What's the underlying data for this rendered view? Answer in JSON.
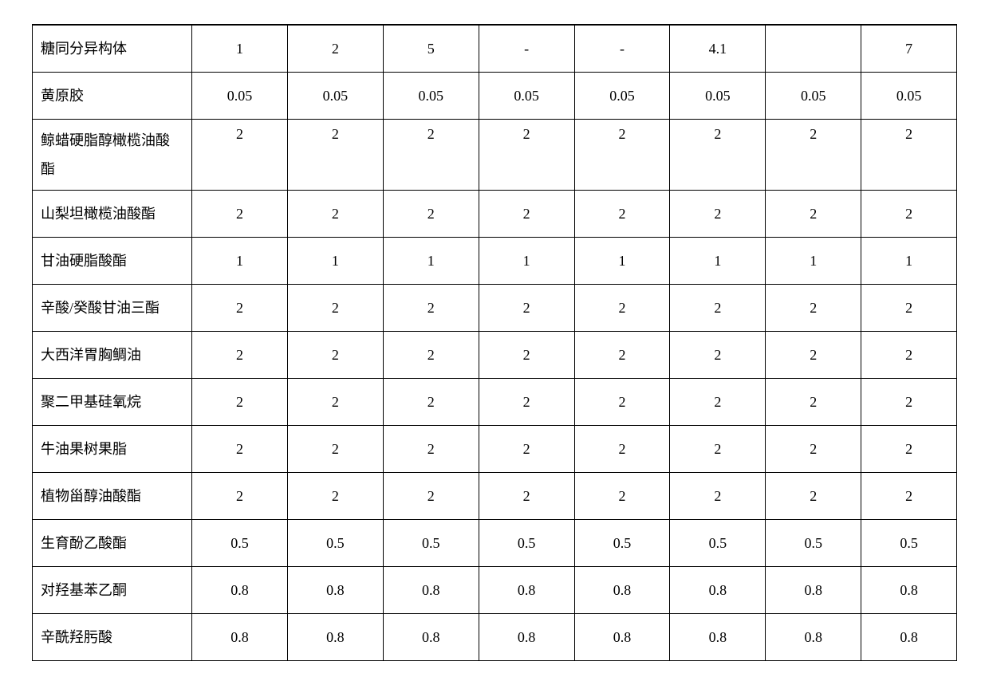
{
  "col_widths": {
    "label": "200px"
  },
  "rows": [
    {
      "label": "糖同分异构体",
      "cells": [
        "1",
        "2",
        "5",
        "-",
        "-",
        "4.1",
        "",
        "7"
      ],
      "twoLine": false
    },
    {
      "label": "黄原胶",
      "cells": [
        "0.05",
        "0.05",
        "0.05",
        "0.05",
        "0.05",
        "0.05",
        "0.05",
        "0.05"
      ],
      "twoLine": false
    },
    {
      "label": "鲸蜡硬脂醇橄榄油酸酯",
      "cells": [
        "2",
        "2",
        "2",
        "2",
        "2",
        "2",
        "2",
        "2"
      ],
      "twoLine": true
    },
    {
      "label": "山梨坦橄榄油酸酯",
      "cells": [
        "2",
        "2",
        "2",
        "2",
        "2",
        "2",
        "2",
        "2"
      ],
      "twoLine": false
    },
    {
      "label": "甘油硬脂酸酯",
      "cells": [
        "1",
        "1",
        "1",
        "1",
        "1",
        "1",
        "1",
        "1"
      ],
      "twoLine": false
    },
    {
      "label": "辛酸/癸酸甘油三酯",
      "cells": [
        "2",
        "2",
        "2",
        "2",
        "2",
        "2",
        "2",
        "2"
      ],
      "twoLine": false
    },
    {
      "label": "大西洋胃胸鲷油",
      "cells": [
        "2",
        "2",
        "2",
        "2",
        "2",
        "2",
        "2",
        "2"
      ],
      "twoLine": false
    },
    {
      "label": "聚二甲基硅氧烷",
      "cells": [
        "2",
        "2",
        "2",
        "2",
        "2",
        "2",
        "2",
        "2"
      ],
      "twoLine": false
    },
    {
      "label": "牛油果树果脂",
      "cells": [
        "2",
        "2",
        "2",
        "2",
        "2",
        "2",
        "2",
        "2"
      ],
      "twoLine": false
    },
    {
      "label": "植物甾醇油酸酯",
      "cells": [
        "2",
        "2",
        "2",
        "2",
        "2",
        "2",
        "2",
        "2"
      ],
      "twoLine": false
    },
    {
      "label": "生育酚乙酸酯",
      "cells": [
        "0.5",
        "0.5",
        "0.5",
        "0.5",
        "0.5",
        "0.5",
        "0.5",
        "0.5"
      ],
      "twoLine": false
    },
    {
      "label": "对羟基苯乙酮",
      "cells": [
        "0.8",
        "0.8",
        "0.8",
        "0.8",
        "0.8",
        "0.8",
        "0.8",
        "0.8"
      ],
      "twoLine": false
    },
    {
      "label": "辛酰羟肟酸",
      "cells": [
        "0.8",
        "0.8",
        "0.8",
        "0.8",
        "0.8",
        "0.8",
        "0.8",
        "0.8"
      ],
      "twoLine": false
    }
  ]
}
